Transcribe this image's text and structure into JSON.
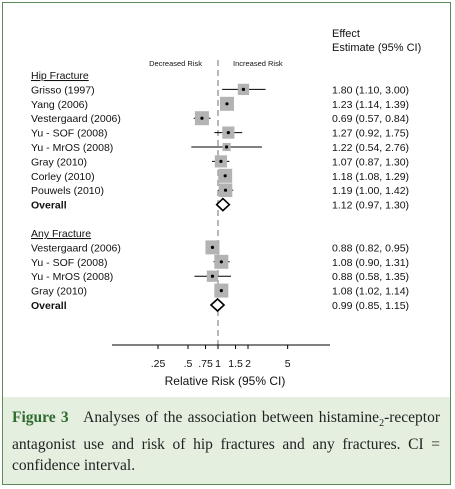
{
  "chart_data": {
    "type": "forest",
    "header_effect_line1": "Effect",
    "header_effect_line2": "Estimate (95% CI)",
    "label_decreased": "Decreased Risk",
    "label_increased": "Increased Risk",
    "xlabel": "Relative Risk (95% CI)",
    "x_scale": "log",
    "xlim": [
      0.2,
      6
    ],
    "reference_line": 1,
    "x_ticks": [
      {
        "value": 0.25,
        "label": ".25"
      },
      {
        "value": 0.5,
        "label": ".5"
      },
      {
        "value": 0.75,
        "label": ".75"
      },
      {
        "value": 1,
        "label": "1"
      },
      {
        "value": 1.5,
        "label": "1.5"
      },
      {
        "value": 2,
        "label": "2"
      },
      {
        "value": 5,
        "label": "5"
      }
    ],
    "groups": [
      {
        "name": "Hip Fracture",
        "studies": [
          {
            "label": "Grisso (1997)",
            "est": 1.8,
            "lo": 1.1,
            "hi": 3.0,
            "text": "1.80 (1.10, 3.00)",
            "weight": 0.7
          },
          {
            "label": "Yang (2006)",
            "est": 1.23,
            "lo": 1.14,
            "hi": 1.39,
            "text": "1.23 (1.14, 1.39)",
            "weight": 1.0
          },
          {
            "label": "Vestergaard (2006)",
            "est": 0.69,
            "lo": 0.57,
            "hi": 0.84,
            "text": "0.69 (0.57, 0.84)",
            "weight": 1.0
          },
          {
            "label": "Yu - SOF (2008)",
            "est": 1.27,
            "lo": 0.92,
            "hi": 1.75,
            "text": "1.27 (0.92, 1.75)",
            "weight": 0.8
          },
          {
            "label": "Yu - MrOS (2008)",
            "est": 1.22,
            "lo": 0.54,
            "hi": 2.76,
            "text": "1.22 (0.54, 2.76)",
            "weight": 0.35
          },
          {
            "label": "Gray (2010)",
            "est": 1.07,
            "lo": 0.87,
            "hi": 1.3,
            "text": "1.07 (0.87, 1.30)",
            "weight": 0.8
          },
          {
            "label": "Corley (2010)",
            "est": 1.18,
            "lo": 1.08,
            "hi": 1.29,
            "text": "1.18 (1.08, 1.29)",
            "weight": 1.0
          },
          {
            "label": "Pouwels (2010)",
            "est": 1.19,
            "lo": 1.0,
            "hi": 1.42,
            "text": "1.19 (1.00, 1.42)",
            "weight": 0.95
          }
        ],
        "overall": {
          "label": "Overall",
          "est": 1.12,
          "lo": 0.97,
          "hi": 1.3,
          "text": "1.12 (0.97, 1.30)"
        }
      },
      {
        "name": "Any Fracture",
        "studies": [
          {
            "label": "Vestergaard (2006)",
            "est": 0.88,
            "lo": 0.82,
            "hi": 0.95,
            "text": "0.88 (0.82, 0.95)",
            "weight": 1.0
          },
          {
            "label": "Yu - SOF (2008)",
            "est": 1.08,
            "lo": 0.9,
            "hi": 1.31,
            "text": "1.08 (0.90, 1.31)",
            "weight": 1.0
          },
          {
            "label": "Yu - MrOS (2008)",
            "est": 0.88,
            "lo": 0.58,
            "hi": 1.35,
            "text": "0.88 (0.58, 1.35)",
            "weight": 0.7
          },
          {
            "label": "Gray (2010)",
            "est": 1.08,
            "lo": 1.02,
            "hi": 1.14,
            "text": "1.08 (1.02, 1.14)",
            "weight": 1.0
          }
        ],
        "overall": {
          "label": "Overall",
          "est": 0.99,
          "lo": 0.85,
          "hi": 1.15,
          "text": "0.99 (0.85, 1.15)"
        }
      }
    ]
  },
  "caption": {
    "figure_label": "Figure 3",
    "text_before_sub": "Analyses of the association between histamine",
    "subscript": "2",
    "text_after_sub": "-receptor antagonist use and risk of hip fractures and any fractures. CI = confidence interval."
  },
  "colors": {
    "frame_border": "#5a8a57",
    "caption_bg": "#e4efe0",
    "figure_label": "#2f6b2f",
    "box_fill": "#b3b3b3",
    "reference_line": "#999999"
  }
}
